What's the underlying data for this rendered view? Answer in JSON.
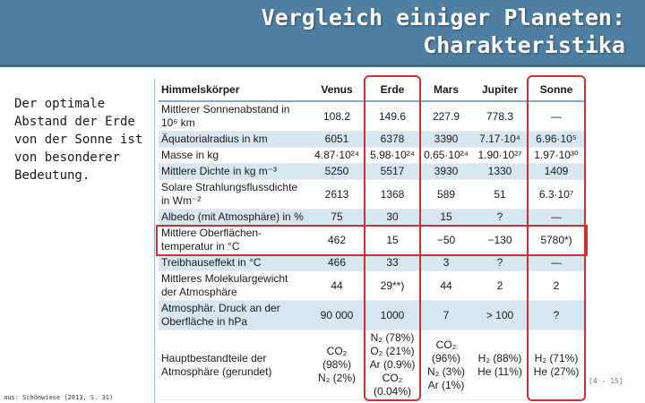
{
  "slide": {
    "title_line1": "Vergleich einiger Planeten:",
    "title_line2": "Charakteristika",
    "left_text": "Der optimale\nAbstand der Erde\nvon der Sonne ist\nvon besonderer\nBedeutung.",
    "ref": "[4 - 15]",
    "source": "aus: Schönwiese (2013, S. 31)"
  },
  "table": {
    "headers": [
      "Himmelskörper",
      "Venus",
      "Erde",
      "Mars",
      "Jupiter",
      "Sonne"
    ],
    "rows": [
      {
        "label": "Mittlerer Sonnenabstand in 10⁶ km",
        "cells": [
          "108.2",
          "149.6",
          "227.9",
          "778.3",
          "—"
        ]
      },
      {
        "label": "Äquatorialradius in km",
        "cells": [
          "6051",
          "6378",
          "3390",
          "7.17·10⁴",
          "6.96·10⁵"
        ]
      },
      {
        "label": "Masse in kg",
        "cells": [
          "4.87·10²⁴",
          "5.98·10²⁴",
          "0.65·10²⁴",
          "1.90·10²⁷",
          "1.97·10³⁰"
        ]
      },
      {
        "label": "Mittlere Dichte in kg m⁻³",
        "cells": [
          "5250",
          "5517",
          "3930",
          "1330",
          "1409"
        ]
      },
      {
        "label": "Solare Strahlungsflussdichte in Wm⁻²",
        "cells": [
          "2613",
          "1368",
          "589",
          "51",
          "6.3·10⁷"
        ]
      },
      {
        "label": "Albedo (mit Atmosphäre) in %",
        "cells": [
          "75",
          "30",
          "15",
          "?",
          "—"
        ]
      },
      {
        "label": "Mittlere Oberflächen-temperatur in °C",
        "cells": [
          "462",
          "15",
          "−50",
          "−130",
          "5780*)"
        ]
      },
      {
        "label": "Treibhauseffekt in °C",
        "cells": [
          "466",
          "33",
          "3",
          "?",
          "—"
        ]
      },
      {
        "label": "Mittleres Molekulargewicht der Atmosphäre",
        "cells": [
          "44",
          "29**)",
          "44",
          "2",
          "2"
        ]
      },
      {
        "label": "Atmosphär. Druck an der Oberfläche in hPa",
        "cells": [
          "90 000",
          "1000",
          "7",
          "> 100",
          "?"
        ]
      },
      {
        "label": "Hauptbestandteile der Atmosphäre (gerundet)",
        "cells": [
          "CO₂ (98%)\nN₂ (2%)",
          "N₂ (78%)\nO₂ (21%)\nAr (0.9%)\nCO₂ (0.04%)",
          "CO₂ (96%)\nN₂ (3%)\nAr (1%)",
          "H₂ (88%)\nHe (11%)",
          "H₂ (71%)\nHe (27%)"
        ]
      }
    ]
  },
  "colors": {
    "header_bg": "#4f7fa3",
    "row_alt": "#d7e7f2",
    "highlight": "#d0302f"
  }
}
